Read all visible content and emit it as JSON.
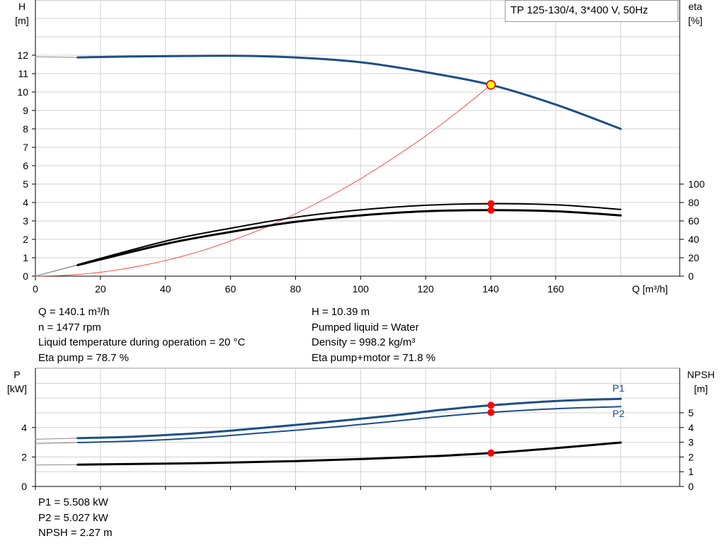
{
  "title": "TP 125-130/4, 3*400 V, 50Hz",
  "colors": {
    "head": "#1c4f86",
    "power": "#1c4f86",
    "eta": "#000000",
    "npsh": "#000000",
    "system_curve": "#ff3b3b",
    "duty_point": "#ff0000",
    "duty_head_fill": "#ffff00",
    "grid": "#d0d0d0"
  },
  "upper_axes": {
    "h_label": "H",
    "h_unit": "[m]",
    "eta_label": "eta",
    "eta_unit": "[%]",
    "x_label": "Q [m³/h]",
    "h_ticks": [
      "0",
      "1",
      "2",
      "3",
      "4",
      "5",
      "6",
      "7",
      "8",
      "9",
      "10",
      "11",
      "12"
    ],
    "eta_ticks": [
      "0",
      "20",
      "40",
      "60",
      "80",
      "100"
    ],
    "x_ticks": [
      "0",
      "20",
      "40",
      "60",
      "80",
      "100",
      "120",
      "140",
      "160"
    ]
  },
  "lower_axes": {
    "p_label": "P",
    "p_unit": "[kW]",
    "npsh_label": "NPSH",
    "npsh_unit": "[m]",
    "p_ticks": [
      "0",
      "2",
      "4"
    ],
    "npsh_ticks": [
      "0",
      "1",
      "2",
      "3",
      "4",
      "5"
    ],
    "series_labels": {
      "p1": "P1",
      "p2": "P2"
    }
  },
  "duty_info": {
    "left": [
      "Q = 140.1 m³/h",
      "n = 1477 rpm",
      "Liquid temperature during operation = 20 °C",
      "Eta pump = 78.7 %"
    ],
    "right": [
      "H = 10.39 m",
      "Pumped liquid = Water",
      "Density = 998.2 kg/m³",
      "Eta pump+motor = 71.8 %"
    ]
  },
  "power_info": [
    "P1 = 5.508 kW",
    "P2 = 5.027 kW",
    "NPSH = 2.27 m"
  ],
  "chart_data": [
    {
      "type": "line",
      "x_name": "Q [m³/h]",
      "xlim": [
        0,
        195
      ],
      "ylim_left": [
        0,
        13.5
      ],
      "ylim_right": [
        0,
        100
      ],
      "grid": true,
      "duty_point": {
        "q": 140.1,
        "h": 10.39,
        "eta_pump": 78.7,
        "eta_total": 71.8
      },
      "series": [
        {
          "key": "head",
          "axis": "left",
          "points": [
            [
              0,
              11.9
            ],
            [
              13,
              11.88
            ],
            [
              30,
              11.93
            ],
            [
              60,
              11.97
            ],
            [
              80,
              11.88
            ],
            [
              100,
              11.62
            ],
            [
              120,
              11.08
            ],
            [
              140.1,
              10.39
            ],
            [
              160,
              9.32
            ],
            [
              180,
              8.0
            ]
          ]
        },
        {
          "key": "head_ext",
          "axis": "left",
          "points": [
            [
              0,
              11.92
            ],
            [
              13,
              11.88
            ]
          ]
        },
        {
          "key": "eta_pump",
          "axis": "right",
          "points": [
            [
              0,
              0
            ],
            [
              13,
              12.5
            ],
            [
              40,
              38
            ],
            [
              60,
              52
            ],
            [
              80,
              64
            ],
            [
              100,
              72
            ],
            [
              120,
              77
            ],
            [
              140.1,
              78.7
            ],
            [
              160,
              77.5
            ],
            [
              180,
              72.5
            ]
          ]
        },
        {
          "key": "eta_total",
          "axis": "right",
          "points": [
            [
              0,
              0
            ],
            [
              13,
              12
            ],
            [
              40,
              35
            ],
            [
              60,
              48
            ],
            [
              80,
              59
            ],
            [
              100,
              66
            ],
            [
              120,
              70.5
            ],
            [
              140.1,
              71.8
            ],
            [
              160,
              70.5
            ],
            [
              180,
              66
            ]
          ]
        },
        {
          "key": "system_curve",
          "axis": "left",
          "points": [
            [
              0,
              0
            ],
            [
              10,
              0.05
            ],
            [
              20,
              0.21
            ],
            [
              30,
              0.48
            ],
            [
              40,
              0.85
            ],
            [
              50,
              1.32
            ],
            [
              60,
              1.91
            ],
            [
              70,
              2.59
            ],
            [
              80,
              3.39
            ],
            [
              90,
              4.29
            ],
            [
              100,
              5.29
            ],
            [
              110,
              6.41
            ],
            [
              120,
              7.62
            ],
            [
              130,
              8.95
            ],
            [
              140.1,
              10.39
            ]
          ]
        }
      ]
    },
    {
      "type": "line",
      "x_name": "Q [m³/h]",
      "xlim": [
        0,
        195
      ],
      "ylim_left": [
        0,
        6.1
      ],
      "ylim_right": [
        0,
        6.1
      ],
      "grid": true,
      "duty_point": {
        "q": 140.1,
        "p1": 5.508,
        "p2": 5.027,
        "npsh": 2.27
      },
      "series": [
        {
          "key": "p1",
          "name": "P1",
          "axis": "left",
          "points": [
            [
              0,
              3.2
            ],
            [
              13,
              3.28
            ],
            [
              30,
              3.38
            ],
            [
              50,
              3.62
            ],
            [
              70,
              3.98
            ],
            [
              90,
              4.38
            ],
            [
              110,
              4.82
            ],
            [
              125,
              5.2
            ],
            [
              140.1,
              5.508
            ],
            [
              160,
              5.8
            ],
            [
              180,
              5.95
            ]
          ]
        },
        {
          "key": "p2",
          "name": "P2",
          "axis": "left",
          "points": [
            [
              0,
              2.9
            ],
            [
              13,
              2.98
            ],
            [
              30,
              3.08
            ],
            [
              50,
              3.3
            ],
            [
              70,
              3.64
            ],
            [
              90,
              4.0
            ],
            [
              110,
              4.42
            ],
            [
              125,
              4.76
            ],
            [
              140.1,
              5.027
            ],
            [
              160,
              5.28
            ],
            [
              180,
              5.42
            ]
          ]
        },
        {
          "key": "npsh",
          "axis": "right",
          "points": [
            [
              0,
              1.45
            ],
            [
              13,
              1.48
            ],
            [
              40,
              1.55
            ],
            [
              60,
              1.62
            ],
            [
              80,
              1.72
            ],
            [
              100,
              1.86
            ],
            [
              120,
              2.03
            ],
            [
              140.1,
              2.27
            ],
            [
              160,
              2.6
            ],
            [
              180,
              2.98
            ]
          ]
        }
      ]
    }
  ]
}
